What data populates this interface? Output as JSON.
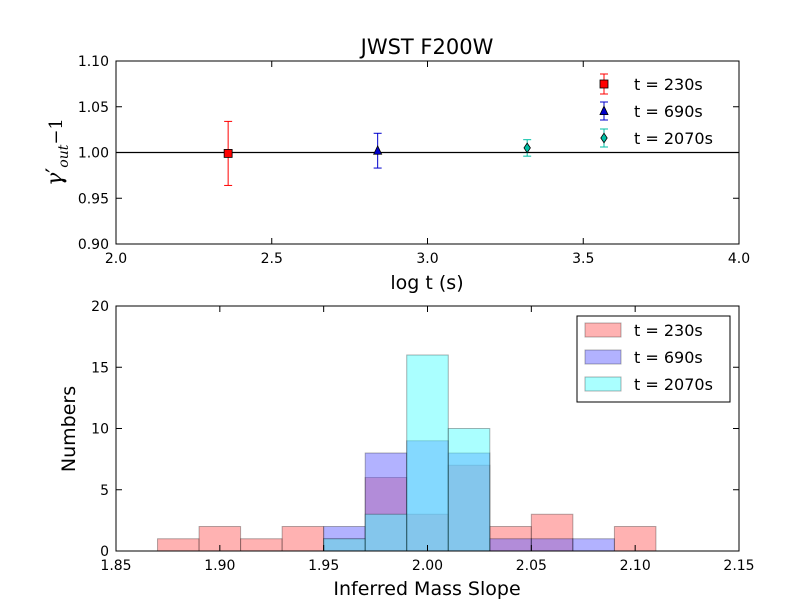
{
  "chart_data": [
    {
      "type": "scatter",
      "title": "JWST F200W",
      "xlabel": "log t (s)",
      "ylabel": {
        "symbol": "γ",
        "prime": "′",
        "subscript": "out",
        "suffix": "−1"
      },
      "xlim": [
        2.0,
        4.0
      ],
      "ylim": [
        0.9,
        1.1
      ],
      "xticks": [
        2.0,
        2.5,
        3.0,
        3.5,
        4.0
      ],
      "xtick_labels": [
        "2.0",
        "2.5",
        "3.0",
        "3.5",
        "4.0"
      ],
      "yticks": [
        0.9,
        0.95,
        1.0,
        1.05,
        1.1
      ],
      "ytick_labels": [
        "0.90",
        "0.95",
        "1.00",
        "1.05",
        "1.10"
      ],
      "reference_line_y": 1.0,
      "legend_position": "top-right",
      "series": [
        {
          "name": "t = 230s",
          "x": 2.36,
          "y": 0.999,
          "yerr": 0.035,
          "marker": "square",
          "color": "#ff0000"
        },
        {
          "name": "t = 690s",
          "x": 2.84,
          "y": 1.002,
          "yerr": 0.019,
          "marker": "triangle",
          "color": "#0000cc"
        },
        {
          "name": "t = 2070s",
          "x": 3.32,
          "y": 1.005,
          "yerr": 0.009,
          "marker": "diamond",
          "color": "#00bfa5"
        }
      ]
    },
    {
      "type": "bar",
      "subtype": "histogram",
      "xlabel": "Inferred Mass Slope",
      "ylabel": "Numbers",
      "xlim": [
        1.85,
        2.15
      ],
      "ylim": [
        0,
        20
      ],
      "xticks": [
        1.85,
        1.9,
        1.95,
        2.0,
        2.05,
        2.1,
        2.15
      ],
      "xtick_labels": [
        "1.85",
        "1.90",
        "1.95",
        "2.00",
        "2.05",
        "2.10",
        "2.15"
      ],
      "yticks": [
        0,
        5,
        10,
        15,
        20
      ],
      "ytick_labels": [
        "0",
        "5",
        "10",
        "15",
        "20"
      ],
      "bin_edges": [
        1.85,
        1.87,
        1.89,
        1.91,
        1.93,
        1.95,
        1.97,
        1.99,
        2.01,
        2.03,
        2.05,
        2.07,
        2.09,
        2.11,
        2.13
      ],
      "legend_position": "top-right",
      "series": [
        {
          "name": "t = 230s",
          "color": "#ff6666",
          "values": [
            0,
            1,
            2,
            1,
            2,
            1,
            6,
            3,
            7,
            2,
            3,
            0,
            2,
            0
          ]
        },
        {
          "name": "t = 690s",
          "color": "#6666ff",
          "values": [
            0,
            0,
            0,
            0,
            0,
            2,
            8,
            9,
            8,
            1,
            1,
            1,
            0,
            0
          ]
        },
        {
          "name": "t = 2070s",
          "color": "#55ffff",
          "values": [
            0,
            0,
            0,
            0,
            0,
            1,
            3,
            16,
            10,
            0,
            0,
            0,
            0,
            0
          ]
        }
      ]
    }
  ]
}
